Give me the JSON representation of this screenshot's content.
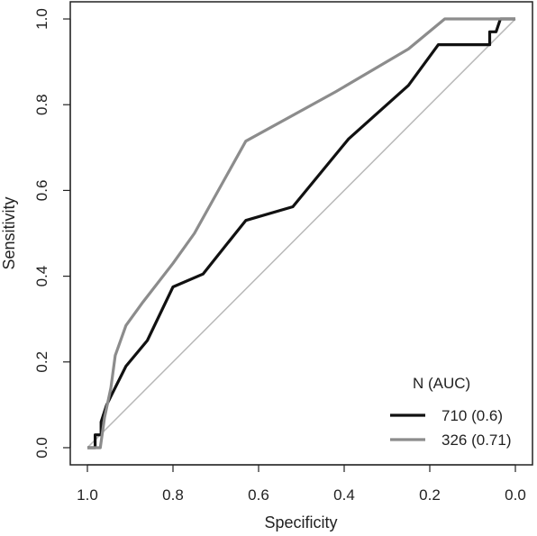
{
  "chart_data": {
    "type": "line",
    "xlabel": "Specificity",
    "ylabel": "Sensitivity",
    "xlim": [
      1.04,
      -0.04
    ],
    "ylim": [
      -0.04,
      1.04
    ],
    "x_reversed": true,
    "x_ticks": [
      {
        "value": 1.0,
        "label": "1.0"
      },
      {
        "value": 0.8,
        "label": "0.8"
      },
      {
        "value": 0.6,
        "label": "0.6"
      },
      {
        "value": 0.4,
        "label": "0.4"
      },
      {
        "value": 0.2,
        "label": "0.2"
      },
      {
        "value": 0.0,
        "label": "0.0"
      }
    ],
    "y_ticks": [
      {
        "value": 0.0,
        "label": "0.0"
      },
      {
        "value": 0.2,
        "label": "0.2"
      },
      {
        "value": 0.4,
        "label": "0.4"
      },
      {
        "value": 0.6,
        "label": "0.6"
      },
      {
        "value": 0.8,
        "label": "0.8"
      },
      {
        "value": 1.0,
        "label": "1.0"
      }
    ],
    "grid": false,
    "legend_position": "bottom-right",
    "legend_title": "N (AUC)",
    "reference_line": {
      "x": [
        1.0,
        0.0
      ],
      "y": [
        0.0,
        1.0
      ],
      "color": "#b8b8b8"
    },
    "series": [
      {
        "name": "710 (0.6)",
        "color": "#111111",
        "x": [
          1.0,
          0.982,
          0.982,
          0.968,
          0.968,
          0.955,
          0.94,
          0.91,
          0.86,
          0.8,
          0.73,
          0.63,
          0.52,
          0.39,
          0.25,
          0.18,
          0.06,
          0.06,
          0.045,
          0.035,
          0.0
        ],
        "y": [
          0.0,
          0.0,
          0.03,
          0.03,
          0.06,
          0.1,
          0.13,
          0.19,
          0.25,
          0.375,
          0.405,
          0.53,
          0.562,
          0.72,
          0.845,
          0.94,
          0.94,
          0.97,
          0.97,
          1.0,
          1.0
        ]
      },
      {
        "name": "326 (0.71)",
        "color": "#8c8c8c",
        "x": [
          1.0,
          0.97,
          0.96,
          0.945,
          0.935,
          0.91,
          0.87,
          0.8,
          0.75,
          0.63,
          0.42,
          0.25,
          0.165,
          0.0
        ],
        "y": [
          0.0,
          0.0,
          0.07,
          0.14,
          0.215,
          0.285,
          0.34,
          0.43,
          0.5,
          0.715,
          0.83,
          0.93,
          1.0,
          1.0
        ]
      }
    ]
  }
}
